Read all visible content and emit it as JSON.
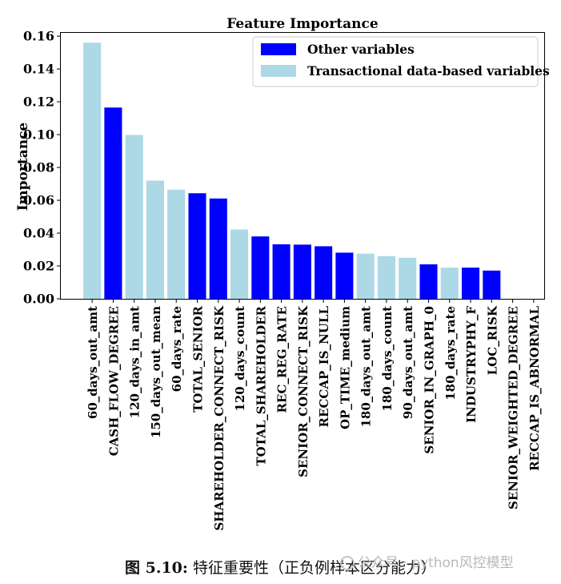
{
  "chart_data": {
    "type": "bar",
    "title": "Feature Importance",
    "xlabel": "",
    "ylabel": "Importance",
    "ylim": [
      0,
      0.162
    ],
    "yticks": [
      0.0,
      0.02,
      0.04,
      0.06,
      0.08,
      0.1,
      0.12,
      0.14,
      0.16
    ],
    "ytick_labels": [
      "0.00",
      "0.02",
      "0.04",
      "0.06",
      "0.08",
      "0.10",
      "0.12",
      "0.14",
      "0.16"
    ],
    "grid": false,
    "legend_position": "top-right",
    "legend": [
      {
        "name": "Other variables",
        "color": "#0000ff"
      },
      {
        "name": "Transactional data-based variables",
        "color": "#add8e6"
      }
    ],
    "categories": [
      "60_days_out_amt",
      "CASH_FLOW_DEGREE",
      "120_days_in_amt",
      "150_days_out_mean",
      "60_days_rate",
      "TOTAL_SENIOR",
      "SHAREHOLDER_CONNECT_RISK",
      "120_days_count",
      "TOTAL_SHAREHOLDER",
      "REC_REG_RATE",
      "SENIOR_CONNECT_RISK",
      "RECCAP_IS_NULL",
      "OP_TIME_medium",
      "180_days_out_amt",
      "180_days_count",
      "90_days_out_amt",
      "SENIOR_IN_GRAPH_0",
      "180_days_rate",
      "INDUSTRYPHY_F",
      "LOC_RISK",
      "SENIOR_WEIGHTED_DEGREE",
      "RECCAP_IS_ABNORMAL"
    ],
    "values": [
      0.156,
      0.1165,
      0.0998,
      0.072,
      0.0665,
      0.0643,
      0.0611,
      0.0422,
      0.038,
      0.0332,
      0.033,
      0.032,
      0.0281,
      0.0275,
      0.026,
      0.025,
      0.021,
      0.019,
      0.019,
      0.0172,
      0.0,
      0.0
    ],
    "groups": [
      1,
      0,
      1,
      1,
      1,
      0,
      0,
      1,
      0,
      0,
      0,
      0,
      0,
      1,
      1,
      1,
      0,
      1,
      0,
      0,
      0,
      0
    ],
    "group_colors": [
      "#0000ff",
      "#add8e6"
    ]
  },
  "caption": {
    "label": "图 5.10:",
    "text": "特征重要性（正负例样本区分能力）"
  },
  "watermark": {
    "text": "公众号 · python风控模型"
  }
}
